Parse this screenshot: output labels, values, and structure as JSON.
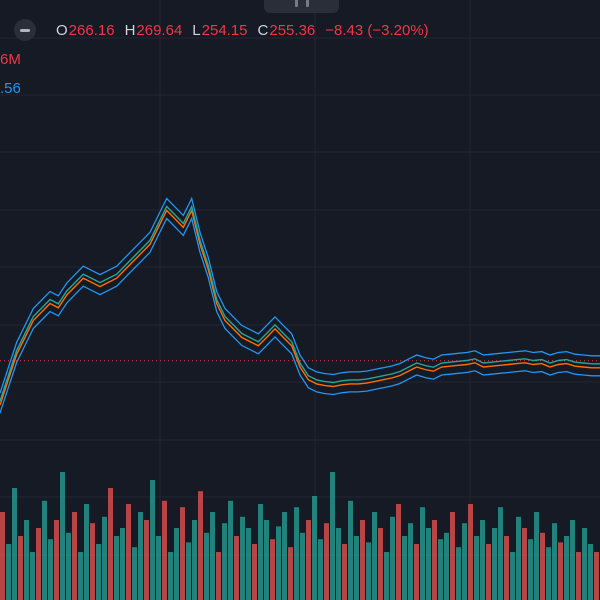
{
  "legend": {
    "ohlc": [
      {
        "key": "O",
        "value": "266.16"
      },
      {
        "key": "H",
        "value": "269.64"
      },
      {
        "key": "L",
        "value": "254.15"
      },
      {
        "key": "C",
        "value": "255.36"
      }
    ],
    "change": "−8.43 (−3.20%)",
    "volume_partial": "6M",
    "bb_partial": ".56"
  },
  "colors": {
    "background": "#161a25",
    "grid": "#222633",
    "price_line": "#f23645",
    "bb_band": "#2196f3",
    "basis": "#ff6d00",
    "close": "#26a69a",
    "vol_up": "#26a69a",
    "vol_down": "#ef5350"
  },
  "icons": {
    "legend_toggle": "collapse-legend-icon"
  },
  "chart_data": {
    "type": "line",
    "series": [
      {
        "values": [
          254,
          257,
          260,
          262,
          264,
          265,
          266,
          265.5,
          267,
          268,
          269,
          268.5,
          268,
          268.5,
          269,
          270,
          271,
          272,
          273,
          275,
          277,
          276,
          275,
          277,
          273,
          270,
          266,
          264,
          263,
          262,
          261.5,
          261,
          262,
          263,
          262,
          261,
          258.5,
          257,
          256.5,
          256.3,
          256.2,
          256.4,
          256.5,
          256.5,
          256.6,
          256.8,
          257,
          257.2,
          257.5,
          258,
          258.5,
          258.2,
          258,
          258.5,
          258.6,
          258.7,
          258.8,
          259,
          258.5,
          258.6,
          258.7,
          258.8,
          258.9,
          259,
          258.8,
          258.9,
          258.5,
          258.8,
          258.9,
          258.6,
          258.5,
          258.4,
          258.4
        ]
      }
    ],
    "price_line_level": 259,
    "volume": [
      0.55,
      0.35,
      0.7,
      0.4,
      0.5,
      0.3,
      0.45,
      0.62,
      0.38,
      0.5,
      0.8,
      0.42,
      0.55,
      0.3,
      0.6,
      0.48,
      0.35,
      0.52,
      0.7,
      0.4,
      0.45,
      0.6,
      0.33,
      0.55,
      0.5,
      0.75,
      0.4,
      0.62,
      0.3,
      0.45,
      0.58,
      0.36,
      0.5,
      0.68,
      0.42,
      0.55,
      0.3,
      0.48,
      0.62,
      0.4,
      0.52,
      0.45,
      0.35,
      0.6,
      0.5,
      0.38,
      0.46,
      0.55,
      0.33,
      0.58,
      0.42,
      0.5,
      0.65,
      0.38,
      0.48,
      0.8,
      0.45,
      0.35,
      0.62,
      0.4,
      0.5,
      0.36,
      0.55,
      0.45,
      0.3,
      0.52,
      0.6,
      0.4,
      0.48,
      0.35,
      0.58,
      0.45,
      0.5,
      0.38,
      0.42,
      0.55,
      0.33,
      0.48,
      0.6,
      0.4,
      0.5,
      0.35,
      0.45,
      0.58,
      0.4,
      0.3,
      0.52,
      0.45,
      0.38,
      0.55,
      0.42,
      0.33,
      0.48,
      0.36,
      0.4,
      0.5,
      0.3,
      0.45,
      0.35,
      0.3
    ]
  }
}
